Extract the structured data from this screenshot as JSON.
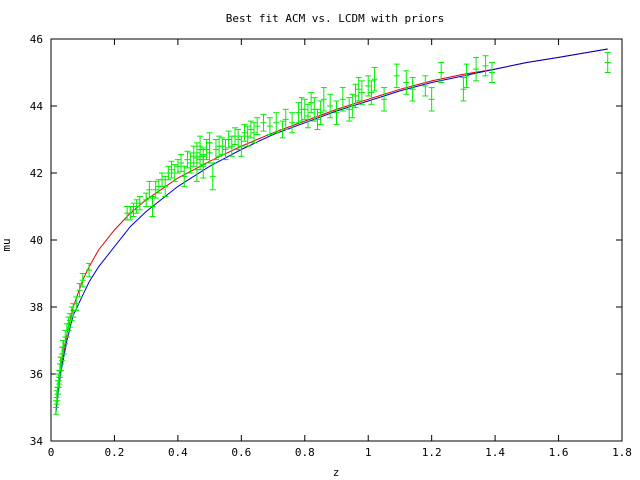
{
  "chart_data": {
    "type": "scatter",
    "title": "Best fit ACM vs. LCDM with priors",
    "xlabel": "z",
    "ylabel": "mu",
    "xlim": [
      0,
      1.8
    ],
    "ylim": [
      34,
      46
    ],
    "x_ticks": [
      "0",
      "0.2",
      "0.4",
      "0.6",
      "0.8",
      "1",
      "1.2",
      "1.4",
      "1.6",
      "1.8"
    ],
    "y_ticks": [
      "34",
      "36",
      "38",
      "40",
      "42",
      "44",
      "46"
    ],
    "grid": false,
    "legend": "none",
    "colors": {
      "data": "#00ee00",
      "acm_fit": "#dd0000",
      "lcdm_fit": "#0000cc",
      "axis": "#000000"
    },
    "series": [
      {
        "kind": "line",
        "color": "#dd0000",
        "x": [
          0.015,
          0.02,
          0.03,
          0.05,
          0.07,
          0.1,
          0.12,
          0.15,
          0.2,
          0.25,
          0.3,
          0.4,
          0.5,
          0.6,
          0.7,
          0.8,
          0.9,
          1.0,
          1.1,
          1.2,
          1.3,
          1.4,
          1.5,
          1.6,
          1.755
        ],
        "y": [
          34.85,
          35.3,
          36.1,
          37.2,
          38.0,
          38.8,
          39.2,
          39.7,
          40.3,
          40.8,
          41.2,
          41.85,
          42.35,
          42.8,
          43.2,
          43.55,
          43.9,
          44.2,
          44.5,
          44.75,
          44.95,
          45.1,
          45.3,
          45.45,
          45.7
        ]
      },
      {
        "kind": "line",
        "color": "#0000cc",
        "x": [
          0.015,
          0.02,
          0.03,
          0.05,
          0.07,
          0.1,
          0.12,
          0.15,
          0.2,
          0.25,
          0.3,
          0.4,
          0.5,
          0.6,
          0.7,
          0.8,
          0.9,
          1.0,
          1.1,
          1.2,
          1.3,
          1.4,
          1.5,
          1.6,
          1.755
        ],
        "y": [
          34.8,
          35.2,
          36.0,
          37.0,
          37.75,
          38.35,
          38.75,
          39.2,
          39.8,
          40.4,
          40.85,
          41.6,
          42.2,
          42.7,
          43.15,
          43.5,
          43.85,
          44.15,
          44.45,
          44.7,
          44.9,
          45.1,
          45.3,
          45.45,
          45.7
        ]
      },
      {
        "kind": "errorbar",
        "color": "#00ee00",
        "x": [
          0.016,
          0.018,
          0.02,
          0.022,
          0.024,
          0.026,
          0.028,
          0.03,
          0.032,
          0.035,
          0.038,
          0.04,
          0.045,
          0.05,
          0.055,
          0.06,
          0.065,
          0.07,
          0.08,
          0.09,
          0.1,
          0.12,
          0.24,
          0.25,
          0.26,
          0.27,
          0.28,
          0.3,
          0.31,
          0.32,
          0.33,
          0.34,
          0.35,
          0.36,
          0.37,
          0.38,
          0.39,
          0.4,
          0.41,
          0.42,
          0.43,
          0.44,
          0.45,
          0.46,
          0.46,
          0.47,
          0.47,
          0.48,
          0.48,
          0.49,
          0.5,
          0.5,
          0.51,
          0.52,
          0.53,
          0.54,
          0.55,
          0.56,
          0.57,
          0.58,
          0.59,
          0.6,
          0.61,
          0.62,
          0.63,
          0.64,
          0.65,
          0.67,
          0.69,
          0.71,
          0.73,
          0.74,
          0.76,
          0.78,
          0.79,
          0.8,
          0.81,
          0.82,
          0.83,
          0.84,
          0.85,
          0.86,
          0.88,
          0.9,
          0.92,
          0.94,
          0.95,
          0.96,
          0.97,
          0.98,
          1.0,
          1.01,
          1.02,
          1.05,
          1.09,
          1.12,
          1.14,
          1.18,
          1.2,
          1.23,
          1.3,
          1.31,
          1.34,
          1.37,
          1.39,
          1.755
        ],
        "y": [
          35.0,
          35.3,
          35.4,
          35.6,
          35.8,
          35.9,
          36.1,
          36.3,
          36.3,
          36.6,
          36.8,
          36.8,
          37.1,
          37.3,
          37.5,
          37.6,
          37.8,
          37.9,
          38.1,
          38.5,
          38.8,
          39.1,
          40.8,
          40.8,
          40.9,
          41.0,
          41.1,
          41.2,
          41.5,
          41.0,
          41.5,
          41.6,
          41.8,
          41.6,
          42.0,
          42.1,
          42.0,
          42.2,
          42.3,
          41.9,
          42.4,
          42.3,
          42.5,
          42.1,
          42.6,
          42.4,
          42.8,
          42.5,
          42.2,
          42.7,
          42.6,
          42.9,
          41.9,
          42.7,
          42.8,
          42.8,
          42.7,
          43.0,
          42.8,
          43.1,
          43.0,
          42.8,
          43.2,
          43.1,
          43.3,
          43.2,
          43.4,
          43.5,
          43.4,
          43.5,
          43.3,
          43.6,
          43.5,
          43.8,
          43.9,
          43.9,
          43.7,
          44.1,
          43.9,
          43.6,
          43.8,
          44.2,
          44.0,
          43.8,
          44.2,
          43.9,
          44.0,
          44.3,
          44.5,
          44.4,
          44.6,
          44.4,
          44.8,
          44.2,
          44.9,
          44.7,
          44.5,
          44.6,
          44.2,
          45.0,
          44.5,
          44.9,
          45.1,
          45.2,
          45.0,
          45.3
        ],
        "err": [
          0.2,
          0.2,
          0.2,
          0.2,
          0.2,
          0.2,
          0.2,
          0.2,
          0.2,
          0.2,
          0.2,
          0.2,
          0.2,
          0.2,
          0.2,
          0.2,
          0.2,
          0.2,
          0.2,
          0.2,
          0.2,
          0.2,
          0.2,
          0.2,
          0.2,
          0.2,
          0.2,
          0.2,
          0.25,
          0.3,
          0.25,
          0.2,
          0.2,
          0.3,
          0.2,
          0.25,
          0.25,
          0.2,
          0.25,
          0.3,
          0.25,
          0.3,
          0.3,
          0.35,
          0.3,
          0.3,
          0.3,
          0.25,
          0.35,
          0.3,
          0.3,
          0.3,
          0.4,
          0.3,
          0.3,
          0.25,
          0.3,
          0.25,
          0.3,
          0.25,
          0.3,
          0.3,
          0.25,
          0.3,
          0.25,
          0.3,
          0.25,
          0.25,
          0.25,
          0.3,
          0.25,
          0.3,
          0.3,
          0.3,
          0.35,
          0.3,
          0.35,
          0.3,
          0.35,
          0.3,
          0.35,
          0.35,
          0.35,
          0.35,
          0.35,
          0.35,
          0.35,
          0.35,
          0.35,
          0.35,
          0.3,
          0.35,
          0.35,
          0.35,
          0.35,
          0.35,
          0.35,
          0.3,
          0.35,
          0.3,
          0.35,
          0.35,
          0.35,
          0.3,
          0.3,
          0.3
        ]
      }
    ]
  }
}
